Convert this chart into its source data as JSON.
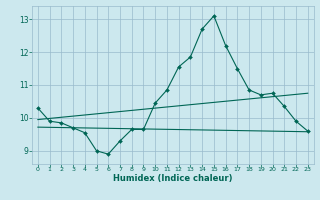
{
  "title": "",
  "xlabel": "Humidex (Indice chaleur)",
  "bg_color": "#cce8ee",
  "grid_color": "#99bbcc",
  "line_color": "#006655",
  "xlim": [
    -0.5,
    23.5
  ],
  "ylim": [
    8.6,
    13.4
  ],
  "x_ticks": [
    0,
    1,
    2,
    3,
    4,
    5,
    6,
    7,
    8,
    9,
    10,
    11,
    12,
    13,
    14,
    15,
    16,
    17,
    18,
    19,
    20,
    21,
    22,
    23
  ],
  "y_ticks": [
    9,
    10,
    11,
    12,
    13
  ],
  "main_x": [
    0,
    1,
    2,
    3,
    4,
    5,
    6,
    7,
    8,
    9,
    10,
    11,
    12,
    13,
    14,
    15,
    16,
    17,
    18,
    19,
    20,
    21,
    22,
    23
  ],
  "main_y": [
    10.3,
    9.9,
    9.85,
    9.7,
    9.55,
    9.0,
    8.9,
    9.3,
    9.65,
    9.65,
    10.45,
    10.85,
    11.55,
    11.85,
    12.7,
    13.1,
    12.2,
    11.5,
    10.85,
    10.7,
    10.75,
    10.35,
    9.9,
    9.6
  ],
  "trend1_x": [
    0,
    23
  ],
  "trend1_y": [
    9.95,
    10.75
  ],
  "trend2_x": [
    0,
    23
  ],
  "trend2_y": [
    9.72,
    9.58
  ]
}
